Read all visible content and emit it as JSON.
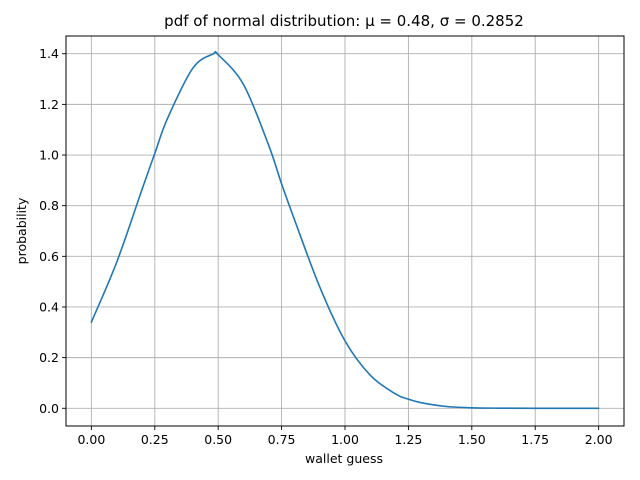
{
  "chart_data": {
    "type": "line",
    "title": "pdf of normal distribution: μ = 0.48, σ = 0.2852",
    "xlabel": "wallet guess",
    "ylabel": "probability",
    "xlim": [
      -0.1,
      2.1
    ],
    "ylim": [
      -0.07,
      1.47
    ],
    "grid": true,
    "x_ticks": [
      0,
      0.25,
      0.5,
      0.75,
      1.0,
      1.25,
      1.5,
      1.75,
      2.0
    ],
    "x_tick_labels": [
      "0.00",
      "0.25",
      "0.50",
      "0.75",
      "1.00",
      "1.25",
      "1.50",
      "1.75",
      "2.00"
    ],
    "y_ticks": [
      0,
      0.2,
      0.4,
      0.6,
      0.8,
      1.0,
      1.2,
      1.4
    ],
    "y_tick_labels": [
      "0.0",
      "0.2",
      "0.4",
      "0.6",
      "0.8",
      "1.0",
      "1.2",
      "1.4"
    ],
    "line_color": "#1f77b4",
    "grid_color": "#b0b0b0",
    "series": [
      {
        "x": [
          0.0,
          0.1,
          0.2,
          0.25,
          0.3,
          0.4,
          0.48,
          0.5,
          0.6,
          0.7,
          0.75,
          0.8,
          0.9,
          1.0,
          1.1,
          1.2,
          1.25,
          1.3,
          1.4,
          1.5,
          1.6,
          1.75,
          2.0
        ],
        "y": [
          0.34,
          0.577,
          0.865,
          1.006,
          1.144,
          1.343,
          1.399,
          1.396,
          1.278,
          1.036,
          0.886,
          0.747,
          0.48,
          0.266,
          0.13,
          0.056,
          0.036,
          0.022,
          0.007,
          0.002,
          0.0005,
          0.0,
          0.0
        ]
      }
    ]
  }
}
